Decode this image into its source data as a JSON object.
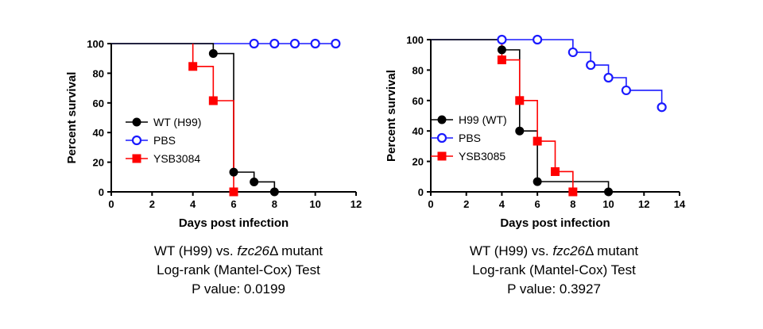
{
  "chart_data": [
    {
      "type": "line",
      "xlabel": "Days post infection",
      "ylabel": "Percent survival",
      "xlim": [
        0,
        12
      ],
      "ylim": [
        0,
        100
      ],
      "xticks": [
        0,
        2,
        4,
        6,
        8,
        10,
        12
      ],
      "yticks": [
        0,
        20,
        40,
        60,
        80,
        100
      ],
      "grid": false,
      "legend_position": "left-middle",
      "series": [
        {
          "name": "WT (H99)",
          "color": "#000000",
          "marker": "filled-circle",
          "step": [
            [
              0,
              100
            ],
            [
              5,
              100
            ],
            [
              5,
              93.3
            ],
            [
              6,
              93.3
            ],
            [
              6,
              13.3
            ],
            [
              7,
              13.3
            ],
            [
              7,
              6.7
            ],
            [
              8,
              6.7
            ],
            [
              8,
              0
            ]
          ],
          "markers": [
            [
              5,
              93.3
            ],
            [
              6,
              13.3
            ],
            [
              7,
              6.7
            ],
            [
              8,
              0
            ]
          ]
        },
        {
          "name": "PBS",
          "color": "#1a1aff",
          "marker": "open-circle",
          "step": [
            [
              0,
              100
            ],
            [
              11,
              100
            ]
          ],
          "markers": [
            [
              7,
              100
            ],
            [
              8,
              100
            ],
            [
              9,
              100
            ],
            [
              10,
              100
            ],
            [
              11,
              100
            ]
          ]
        },
        {
          "name": "YSB3084",
          "color": "#ff0000",
          "marker": "filled-square",
          "step": [
            [
              4,
              100
            ],
            [
              4,
              84.6
            ],
            [
              5,
              84.6
            ],
            [
              5,
              61.5
            ],
            [
              6,
              61.5
            ],
            [
              6,
              0
            ]
          ],
          "markers": [
            [
              4,
              84.6
            ],
            [
              5,
              61.5
            ],
            [
              6,
              0
            ]
          ]
        }
      ],
      "caption": [
        {
          "pre": "WT (H99) vs. ",
          "italic": "fzc26",
          "post": "Δ mutant"
        },
        {
          "pre": "Log-rank (Mantel-Cox) Test",
          "italic": "",
          "post": ""
        },
        {
          "pre": "P value: 0.0199",
          "italic": "",
          "post": ""
        }
      ]
    },
    {
      "type": "line",
      "xlabel": "Days post infection",
      "ylabel": "Percent survival",
      "xlim": [
        0,
        14
      ],
      "ylim": [
        0,
        100
      ],
      "xticks": [
        0,
        2,
        4,
        6,
        8,
        10,
        12,
        14
      ],
      "yticks": [
        0,
        20,
        40,
        60,
        80,
        100
      ],
      "grid": false,
      "legend_position": "left-middle",
      "series": [
        {
          "name": "H99 (WT)",
          "color": "#000000",
          "marker": "filled-circle",
          "step": [
            [
              0,
              100
            ],
            [
              4,
              100
            ],
            [
              4,
              93.3
            ],
            [
              5,
              93.3
            ],
            [
              5,
              40
            ],
            [
              6,
              40
            ],
            [
              6,
              6.7
            ],
            [
              10,
              6.7
            ],
            [
              10,
              0
            ]
          ],
          "markers": [
            [
              4,
              93.3
            ],
            [
              5,
              40
            ],
            [
              6,
              6.7
            ],
            [
              10,
              0
            ]
          ]
        },
        {
          "name": "PBS",
          "color": "#1a1aff",
          "marker": "open-circle",
          "step": [
            [
              0,
              100
            ],
            [
              8,
              100
            ],
            [
              8,
              91.7
            ],
            [
              9,
              91.7
            ],
            [
              9,
              83.3
            ],
            [
              10,
              83.3
            ],
            [
              10,
              75
            ],
            [
              11,
              75
            ],
            [
              11,
              66.7
            ],
            [
              13,
              66.7
            ],
            [
              13,
              55.6
            ]
          ],
          "markers": [
            [
              4,
              100
            ],
            [
              6,
              100
            ],
            [
              8,
              91.7
            ],
            [
              9,
              83.3
            ],
            [
              10,
              75
            ],
            [
              11,
              66.7
            ],
            [
              13,
              55.6
            ]
          ]
        },
        {
          "name": "YSB3085",
          "color": "#ff0000",
          "marker": "filled-square",
          "step": [
            [
              4,
              100
            ],
            [
              4,
              86.7
            ],
            [
              5,
              86.7
            ],
            [
              5,
              60
            ],
            [
              6,
              60
            ],
            [
              6,
              33.3
            ],
            [
              7,
              33.3
            ],
            [
              7,
              13.3
            ],
            [
              8,
              13.3
            ],
            [
              8,
              0
            ]
          ],
          "markers": [
            [
              4,
              86.7
            ],
            [
              5,
              60
            ],
            [
              6,
              33.3
            ],
            [
              7,
              13.3
            ],
            [
              8,
              0
            ]
          ]
        }
      ],
      "caption": [
        {
          "pre": "WT (H99) vs. ",
          "italic": "fzc26",
          "post": "Δ mutant"
        },
        {
          "pre": "Log-rank (Mantel-Cox) Test",
          "italic": "",
          "post": ""
        },
        {
          "pre": "P value: 0.3927",
          "italic": "",
          "post": ""
        }
      ]
    }
  ]
}
